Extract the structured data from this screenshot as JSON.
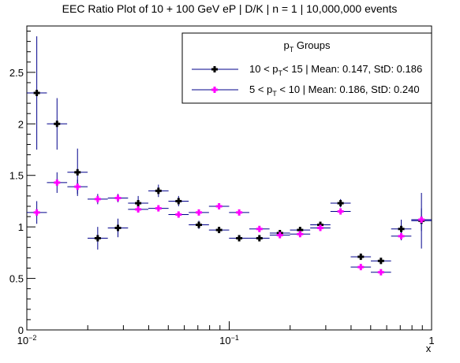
{
  "chart_data": {
    "type": "scatter",
    "title": "EEC Ratio Plot of 10 + 100 GeV eP | D/K | n = 1 | 10,000,000 events",
    "xlabel": "x",
    "ylabel": "",
    "x_scale": "log",
    "xlim": [
      0.01,
      1.0
    ],
    "ylim": [
      0,
      2.95
    ],
    "grid": false,
    "legend_position": "top-right",
    "legend_title": {
      "base": "p",
      "sub": "T",
      "rest": " Groups"
    },
    "x_ticks": [
      {
        "value": 0.01,
        "base": "10",
        "exp": "−2"
      },
      {
        "value": 0.1,
        "base": "10",
        "exp": "−1"
      },
      {
        "value": 1.0,
        "base": "1",
        "exp": ""
      }
    ],
    "y_ticks": [
      {
        "value": 0,
        "label": "0"
      },
      {
        "value": 0.5,
        "label": "0.5"
      },
      {
        "value": 1,
        "label": "1"
      },
      {
        "value": 1.5,
        "label": "1.5"
      },
      {
        "value": 2,
        "label": "2"
      },
      {
        "value": 2.5,
        "label": "2.5"
      }
    ],
    "series": [
      {
        "name": "10 < pT< 15 | Mean: 0.147, StD: 0.186",
        "legend": {
          "pre": "10 < p",
          "sub": "T",
          "post": "< 15 | Mean: 0.147, StD: 0.186"
        },
        "marker_color": "#000000",
        "points": [
          {
            "x": 0.0112,
            "y": 2.3,
            "err": 0.55
          },
          {
            "x": 0.0141,
            "y": 2.0,
            "err": 0.25
          },
          {
            "x": 0.0178,
            "y": 1.53,
            "err": 0.23
          },
          {
            "x": 0.0224,
            "y": 0.89,
            "err": 0.11
          },
          {
            "x": 0.0282,
            "y": 0.99,
            "err": 0.09
          },
          {
            "x": 0.0355,
            "y": 1.23,
            "err": 0.07
          },
          {
            "x": 0.0447,
            "y": 1.35,
            "err": 0.06
          },
          {
            "x": 0.0562,
            "y": 1.25,
            "err": 0.05
          },
          {
            "x": 0.0708,
            "y": 1.02,
            "err": 0.04
          },
          {
            "x": 0.0891,
            "y": 0.97,
            "err": 0.03
          },
          {
            "x": 0.112,
            "y": 0.89,
            "err": 0.03
          },
          {
            "x": 0.141,
            "y": 0.89,
            "err": 0.03
          },
          {
            "x": 0.178,
            "y": 0.94,
            "err": 0.03
          },
          {
            "x": 0.224,
            "y": 0.97,
            "err": 0.03
          },
          {
            "x": 0.282,
            "y": 1.02,
            "err": 0.03
          },
          {
            "x": 0.355,
            "y": 1.23,
            "err": 0.04
          },
          {
            "x": 0.447,
            "y": 0.71,
            "err": 0.03
          },
          {
            "x": 0.562,
            "y": 0.67,
            "err": 0.03
          },
          {
            "x": 0.708,
            "y": 0.98,
            "err": 0.09
          },
          {
            "x": 0.891,
            "y": 1.06,
            "err": 0.27
          }
        ]
      },
      {
        "name": "5 < pT < 10 | Mean: 0.186, StD: 0.240",
        "legend": {
          "pre": "5  < p",
          "sub": "T",
          "post": " < 10 | Mean: 0.186, StD: 0.240"
        },
        "marker_color": "#ff00ff",
        "points": [
          {
            "x": 0.0112,
            "y": 1.14,
            "err": 0.11
          },
          {
            "x": 0.0141,
            "y": 1.43,
            "err": 0.1
          },
          {
            "x": 0.0178,
            "y": 1.39,
            "err": 0.07
          },
          {
            "x": 0.0224,
            "y": 1.27,
            "err": 0.05
          },
          {
            "x": 0.0282,
            "y": 1.28,
            "err": 0.04
          },
          {
            "x": 0.0355,
            "y": 1.17,
            "err": 0.03
          },
          {
            "x": 0.0447,
            "y": 1.18,
            "err": 0.03
          },
          {
            "x": 0.0562,
            "y": 1.12,
            "err": 0.03
          },
          {
            "x": 0.0708,
            "y": 1.14,
            "err": 0.02
          },
          {
            "x": 0.0891,
            "y": 1.2,
            "err": 0.02
          },
          {
            "x": 0.112,
            "y": 1.14,
            "err": 0.02
          },
          {
            "x": 0.141,
            "y": 0.98,
            "err": 0.02
          },
          {
            "x": 0.178,
            "y": 0.92,
            "err": 0.02
          },
          {
            "x": 0.224,
            "y": 0.93,
            "err": 0.02
          },
          {
            "x": 0.282,
            "y": 0.99,
            "err": 0.02
          },
          {
            "x": 0.355,
            "y": 1.15,
            "err": 0.02
          },
          {
            "x": 0.447,
            "y": 0.61,
            "err": 0.02
          },
          {
            "x": 0.562,
            "y": 0.56,
            "err": 0.02
          },
          {
            "x": 0.708,
            "y": 0.91,
            "err": 0.04
          },
          {
            "x": 0.891,
            "y": 1.07,
            "err": 0.11
          }
        ]
      }
    ]
  }
}
